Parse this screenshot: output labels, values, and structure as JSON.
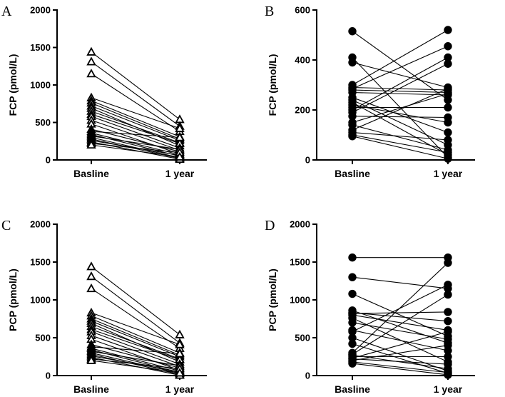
{
  "chart_data": [
    {
      "panel": "A",
      "type": "line",
      "marker": "triangle-open",
      "ylabel": "FCP (pmol/L)",
      "categories": [
        "Basline",
        "1 year"
      ],
      "ylim": [
        0,
        2000
      ],
      "yticks": [
        0,
        500,
        1000,
        1500,
        2000
      ],
      "pairs": [
        [
          1440,
          540
        ],
        [
          1310,
          450
        ],
        [
          1150,
          380
        ],
        [
          830,
          420
        ],
        [
          790,
          310
        ],
        [
          760,
          280
        ],
        [
          720,
          260
        ],
        [
          690,
          190
        ],
        [
          650,
          230
        ],
        [
          610,
          220
        ],
        [
          580,
          160
        ],
        [
          530,
          130
        ],
        [
          480,
          80
        ],
        [
          410,
          110
        ],
        [
          380,
          300
        ],
        [
          360,
          70
        ],
        [
          340,
          50
        ],
        [
          320,
          140
        ],
        [
          300,
          30
        ],
        [
          280,
          20
        ],
        [
          260,
          60
        ],
        [
          240,
          10
        ],
        [
          220,
          100
        ],
        [
          200,
          40
        ]
      ]
    },
    {
      "panel": "B",
      "type": "line",
      "marker": "circle-filled",
      "ylabel": "FCP (pmol/L)",
      "categories": [
        "Basline",
        "1 year"
      ],
      "ylim": [
        0,
        600
      ],
      "yticks": [
        0,
        200,
        400,
        600
      ],
      "pairs": [
        [
          515,
          240
        ],
        [
          410,
          10
        ],
        [
          390,
          290
        ],
        [
          300,
          520
        ],
        [
          290,
          280
        ],
        [
          285,
          455
        ],
        [
          280,
          270
        ],
        [
          270,
          260
        ],
        [
          250,
          110
        ],
        [
          240,
          60
        ],
        [
          230,
          20
        ],
        [
          220,
          150
        ],
        [
          210,
          210
        ],
        [
          200,
          410
        ],
        [
          190,
          385
        ],
        [
          175,
          170
        ],
        [
          150,
          265
        ],
        [
          140,
          40
        ],
        [
          120,
          285
        ],
        [
          110,
          80
        ],
        [
          100,
          30
        ],
        [
          95,
          5
        ]
      ]
    },
    {
      "panel": "C",
      "type": "line",
      "marker": "triangle-open",
      "ylabel": "PCP (pmol/L)",
      "categories": [
        "Basline",
        "1 year"
      ],
      "ylim": [
        0,
        2000
      ],
      "yticks": [
        0,
        500,
        1000,
        1500,
        2000
      ],
      "pairs": [
        [
          1440,
          540
        ],
        [
          1310,
          430
        ],
        [
          1150,
          360
        ],
        [
          830,
          410
        ],
        [
          790,
          300
        ],
        [
          750,
          270
        ],
        [
          720,
          250
        ],
        [
          690,
          180
        ],
        [
          650,
          220
        ],
        [
          610,
          210
        ],
        [
          580,
          150
        ],
        [
          530,
          120
        ],
        [
          480,
          70
        ],
        [
          410,
          100
        ],
        [
          380,
          290
        ],
        [
          360,
          60
        ],
        [
          340,
          40
        ],
        [
          320,
          130
        ],
        [
          300,
          30
        ],
        [
          280,
          15
        ],
        [
          260,
          50
        ],
        [
          240,
          5
        ],
        [
          220,
          90
        ],
        [
          200,
          35
        ]
      ]
    },
    {
      "panel": "D",
      "type": "line",
      "marker": "circle-filled",
      "ylabel": "PCP (pmol/L)",
      "categories": [
        "Basline",
        "1 year"
      ],
      "ylim": [
        0,
        2000
      ],
      "yticks": [
        0,
        500,
        1000,
        1500,
        2000
      ],
      "pairs": [
        [
          1560,
          1560
        ],
        [
          1300,
          1150
        ],
        [
          1080,
          520
        ],
        [
          860,
          430
        ],
        [
          830,
          720
        ],
        [
          820,
          840
        ],
        [
          800,
          600
        ],
        [
          760,
          180
        ],
        [
          700,
          480
        ],
        [
          600,
          330
        ],
        [
          580,
          1200
        ],
        [
          500,
          60
        ],
        [
          420,
          30
        ],
        [
          300,
          1490
        ],
        [
          280,
          1070
        ],
        [
          270,
          90
        ],
        [
          250,
          250
        ],
        [
          230,
          580
        ],
        [
          220,
          150
        ],
        [
          200,
          400
        ],
        [
          180,
          40
        ],
        [
          160,
          10
        ]
      ]
    }
  ]
}
